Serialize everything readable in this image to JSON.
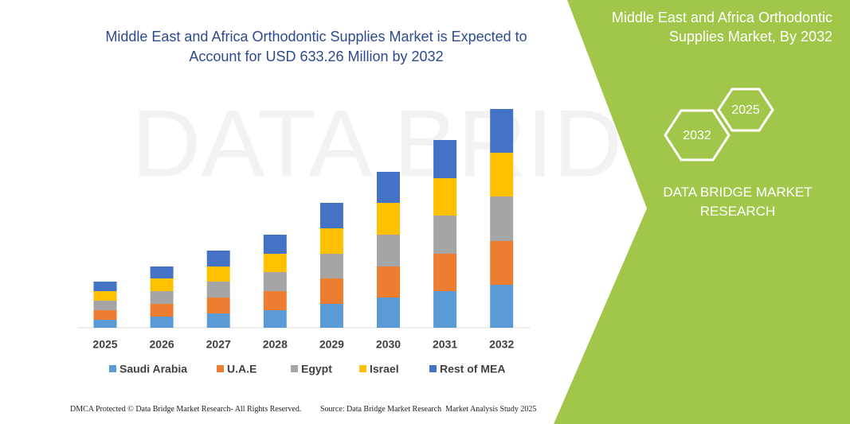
{
  "chart_data": {
    "type": "stacked-bar",
    "title": "Middle East and Africa Orthodontic Supplies Market is Expected to Account for USD 633.26 Million by 2032",
    "categories": [
      "2025",
      "2026",
      "2027",
      "2028",
      "2029",
      "2030",
      "2031",
      "2032"
    ],
    "series": [
      {
        "name": "Saudi Arabia",
        "color": "#5b9bd5",
        "values": [
          10,
          14,
          18,
          22,
          30,
          38,
          46,
          54
        ]
      },
      {
        "name": "U.A.E",
        "color": "#ed7d31",
        "values": [
          12,
          16,
          20,
          24,
          32,
          39,
          47,
          55
        ]
      },
      {
        "name": "Egypt",
        "color": "#a5a5a5",
        "values": [
          12,
          16,
          20,
          24,
          31,
          40,
          48,
          56
        ]
      },
      {
        "name": "Israel",
        "color": "#ffc000",
        "values": [
          12,
          16,
          19,
          23,
          32,
          40,
          47,
          55
        ]
      },
      {
        "name": "Rest of MEA",
        "color": "#4472c4",
        "values": [
          12,
          15,
          20,
          24,
          32,
          39,
          48,
          55
        ]
      }
    ],
    "ylim": [
      0,
      275
    ],
    "legend": "bottom"
  },
  "side_panel": {
    "title": "Middle East and Africa Orthodontic Supplies Market, By 2032",
    "hexagons": [
      "2032",
      "2025"
    ],
    "brand": "DATA BRIDGE MARKET RESEARCH"
  },
  "footer": {
    "copyright": "DMCA Protected © Data Bridge Market Research- All Rights Reserved.",
    "source": "Source: Data Bridge Market Research  Market Analysis Study 2025"
  }
}
